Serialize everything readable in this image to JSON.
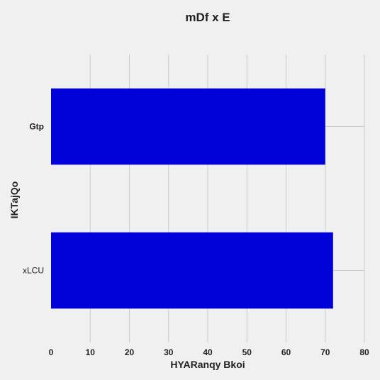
{
  "chart_data": {
    "type": "bar",
    "orientation": "horizontal",
    "title": "mDf x E",
    "xlabel": "HYARanqy Bkoi",
    "ylabel": "IKTajQo",
    "categories": [
      "Gtp",
      "xLCU"
    ],
    "values": [
      70,
      72
    ],
    "xlim": [
      0,
      80
    ],
    "xticks": [
      0,
      10,
      20,
      30,
      40,
      50,
      60,
      70,
      80
    ],
    "grid": true,
    "legend": "none",
    "bar_color": "#0000d8",
    "background_color": "#f0f0f0"
  }
}
